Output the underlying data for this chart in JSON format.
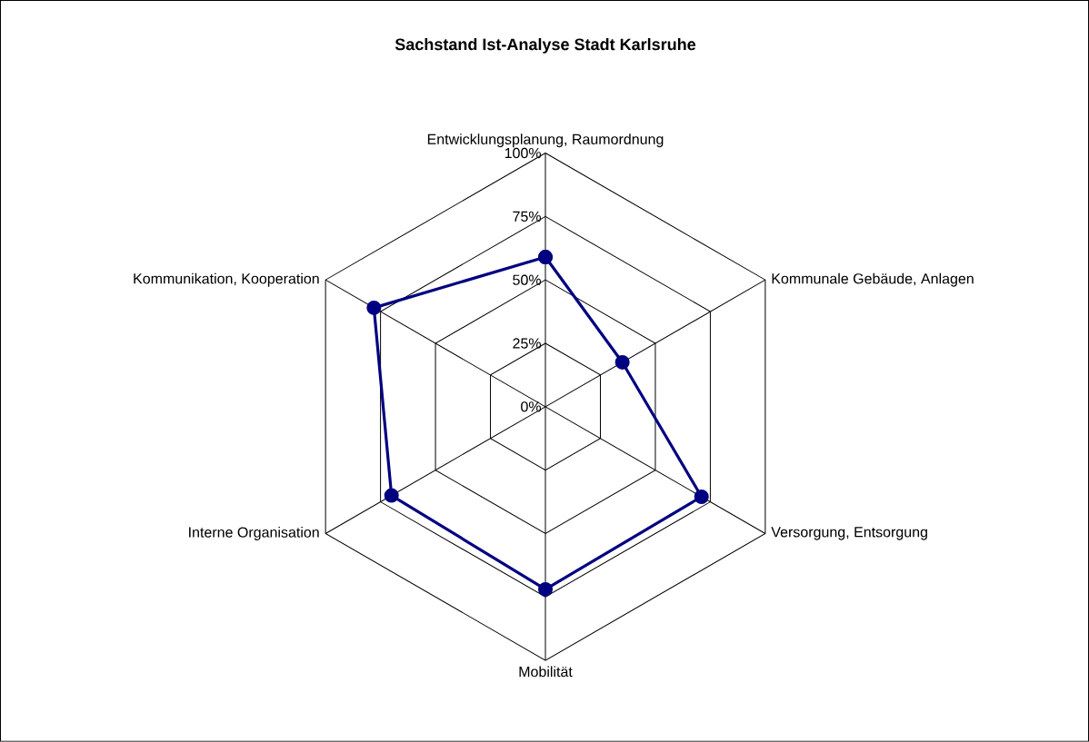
{
  "chart_data": {
    "type": "radar",
    "title": "Sachstand Ist-Analyse Stadt Karlsruhe",
    "categories": [
      "Entwicklungsplanung, Raumordnung",
      "Kommunale Gebäude, Anlagen",
      "Versorgung, Entsorgung",
      "Mobilität",
      "Interne Organisation",
      "Kommunikation, Kooperation"
    ],
    "series": [
      {
        "color": "#000080",
        "values": [
          59,
          35,
          71,
          72,
          70,
          78
        ]
      }
    ],
    "ylim": [
      0,
      100
    ],
    "yticks": [
      {
        "value": 0,
        "label": "0%"
      },
      {
        "value": 25,
        "label": "25%"
      },
      {
        "value": 50,
        "label": "50%"
      },
      {
        "value": 75,
        "label": "75%"
      },
      {
        "value": 100,
        "label": "100%"
      }
    ],
    "grid": true,
    "marker": "circle",
    "line_style": "solid"
  }
}
